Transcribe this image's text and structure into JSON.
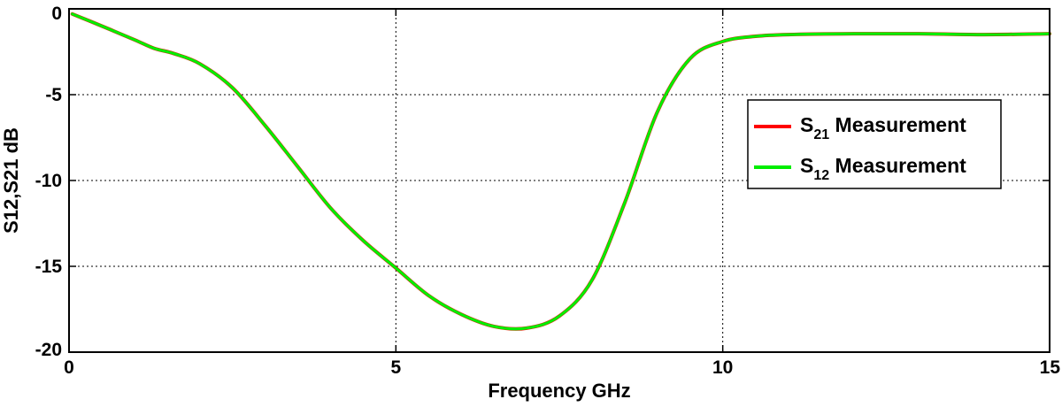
{
  "chart_data": {
    "type": "line",
    "xlabel": "Frequency GHz",
    "ylabel": "S12,S21 dB",
    "xlim": [
      0,
      15
    ],
    "ylim": [
      -20,
      0
    ],
    "xticks": [
      0,
      5,
      10,
      15
    ],
    "yticks": [
      0,
      -5,
      -10,
      -15,
      -20
    ],
    "xtick_labels": [
      "0",
      "5",
      "10",
      "15"
    ],
    "ytick_labels": [
      "0",
      "-5",
      "-10",
      "-15",
      "-20"
    ],
    "grid": true,
    "legend_position": "right",
    "series": [
      {
        "name_main": "S",
        "name_sub": "21",
        "name_rest": " Measurement",
        "color": "#ff0000",
        "x": [
          0.05,
          0.5,
          1.0,
          1.3,
          1.6,
          2.0,
          2.5,
          3.0,
          3.5,
          4.0,
          4.5,
          5.0,
          5.5,
          6.0,
          6.5,
          7.0,
          7.5,
          8.0,
          8.5,
          9.0,
          9.5,
          10.0,
          10.5,
          11.0,
          12.0,
          13.0,
          14.0,
          15.0
        ],
        "y": [
          -0.3,
          -1.0,
          -1.8,
          -2.3,
          -2.6,
          -3.2,
          -4.6,
          -6.8,
          -9.2,
          -11.6,
          -13.5,
          -15.1,
          -16.7,
          -17.8,
          -18.5,
          -18.6,
          -17.9,
          -15.8,
          -11.3,
          -6.0,
          -2.9,
          -1.9,
          -1.6,
          -1.5,
          -1.45,
          -1.45,
          -1.5,
          -1.45
        ]
      },
      {
        "name_main": "S",
        "name_sub": "12",
        "name_rest": " Measurement",
        "color": "#00ee00",
        "x": [
          0.05,
          0.5,
          1.0,
          1.3,
          1.6,
          2.0,
          2.5,
          3.0,
          3.5,
          4.0,
          4.5,
          5.0,
          5.5,
          6.0,
          6.5,
          7.0,
          7.5,
          8.0,
          8.5,
          9.0,
          9.5,
          10.0,
          10.5,
          11.0,
          12.0,
          13.0,
          14.0,
          15.0
        ],
        "y": [
          -0.3,
          -1.0,
          -1.8,
          -2.3,
          -2.6,
          -3.2,
          -4.6,
          -6.8,
          -9.2,
          -11.6,
          -13.5,
          -15.1,
          -16.7,
          -17.8,
          -18.5,
          -18.6,
          -17.9,
          -15.8,
          -11.3,
          -6.0,
          -2.9,
          -1.9,
          -1.6,
          -1.5,
          -1.45,
          -1.45,
          -1.5,
          -1.45
        ]
      }
    ]
  }
}
